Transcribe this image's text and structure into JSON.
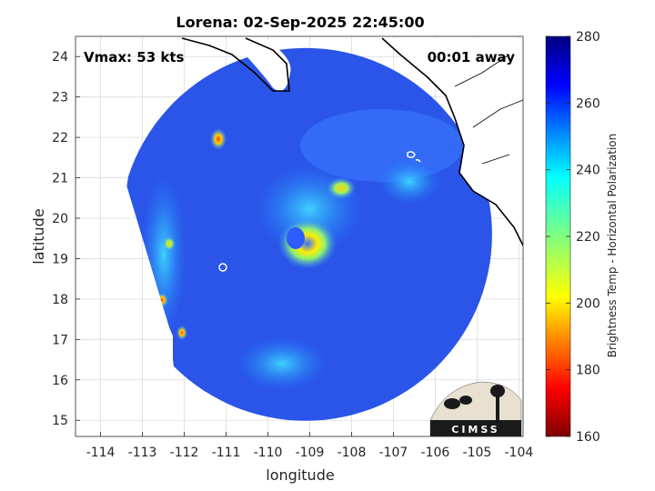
{
  "chart_data": {
    "type": "heatmap",
    "title": "Lorena: 02-Sep-2025 22:45:00",
    "xlabel": "longitude",
    "ylabel": "latitude",
    "xlim": [
      -114.6,
      -103.9
    ],
    "ylim": [
      14.6,
      24.5
    ],
    "x_ticks": [
      -114,
      -113,
      -112,
      -111,
      -110,
      -109,
      -108,
      -107,
      -106,
      -105,
      -104
    ],
    "y_ticks": [
      15,
      16,
      17,
      18,
      19,
      20,
      21,
      22,
      23,
      24
    ],
    "grid": true,
    "annotations": {
      "vmax": "Vmax: 53 kts",
      "away": "00:01 away"
    },
    "colorbar": {
      "label": "Brightness Temp - Horizontal Polarization",
      "min": 160,
      "max": 280,
      "ticks": [
        160,
        180,
        200,
        220,
        240,
        260,
        280
      ],
      "colormap": "jet"
    },
    "swath_center": [
      -109.1,
      19.6
    ],
    "storm_center": [
      -108.9,
      19.5
    ],
    "features": [
      {
        "name": "eyewall-ring",
        "lon": -108.9,
        "lat": 19.5,
        "tb": 215
      },
      {
        "name": "cold-spot-northeast",
        "lon": -108.1,
        "lat": 20.8,
        "tb": 208
      },
      {
        "name": "cold-spot-northwest",
        "lon": -111.0,
        "lat": 22.0,
        "tb": 200
      },
      {
        "name": "rainband-west",
        "lon": -112.5,
        "lat": 18.0,
        "tb": 185
      }
    ],
    "logo": "CIMSS"
  }
}
